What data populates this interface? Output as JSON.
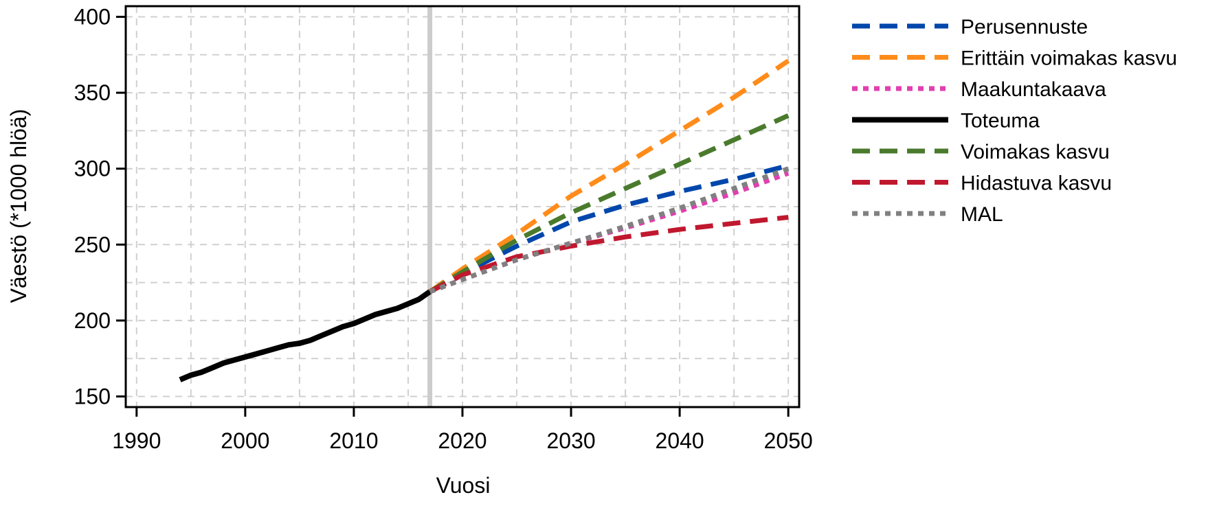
{
  "chart_data": {
    "type": "line",
    "title": "",
    "xlabel": "Vuosi",
    "ylabel": "Väestö (*1000 hlöä)",
    "xlim": [
      1989,
      2051
    ],
    "ylim": [
      143,
      407
    ],
    "x_ticks": [
      1990,
      2000,
      2010,
      2020,
      2030,
      2040,
      2050
    ],
    "y_ticks": [
      150,
      200,
      250,
      300,
      350,
      400
    ],
    "grid": true,
    "grid_style": "dashed",
    "legend_position": "outside-right",
    "reference_line": {
      "x": 2017,
      "color": "#cccccc"
    },
    "series": [
      {
        "name": "Perusennuste",
        "color": "#0047AB",
        "dash": "dashed",
        "x": [
          2017,
          2020,
          2025,
          2030,
          2035,
          2040,
          2045,
          2050
        ],
        "y": [
          219,
          231,
          249,
          265,
          276,
          285,
          293,
          302
        ]
      },
      {
        "name": "Erittäin voimakas kasvu",
        "color": "#FF8C1A",
        "dash": "dashed",
        "x": [
          2017,
          2020,
          2025,
          2030,
          2035,
          2040,
          2045,
          2050
        ],
        "y": [
          219,
          234,
          257,
          282,
          303,
          325,
          347,
          371
        ]
      },
      {
        "name": "Maakuntakaava",
        "color": "#E040B0",
        "dash": "dotted",
        "x": [
          2017,
          2020,
          2025,
          2030,
          2035,
          2040,
          2045,
          2050
        ],
        "y": [
          219,
          227,
          240,
          251,
          261,
          272,
          284,
          297
        ]
      },
      {
        "name": "Toteuma",
        "color": "#000000",
        "dash": "solid",
        "x": [
          1994,
          1995,
          1996,
          1997,
          1998,
          1999,
          2000,
          2001,
          2002,
          2003,
          2004,
          2005,
          2006,
          2007,
          2008,
          2009,
          2010,
          2011,
          2012,
          2013,
          2014,
          2015,
          2016,
          2017
        ],
        "y": [
          161,
          164,
          166,
          169,
          172,
          174,
          176,
          178,
          180,
          182,
          184,
          185,
          187,
          190,
          193,
          196,
          198,
          201,
          204,
          206,
          208,
          211,
          214,
          219
        ]
      },
      {
        "name": "Voimakas kasvu",
        "color": "#4A7A2C",
        "dash": "dashed",
        "x": [
          2017,
          2020,
          2025,
          2030,
          2035,
          2040,
          2045,
          2050
        ],
        "y": [
          219,
          232,
          253,
          271,
          287,
          303,
          319,
          335
        ]
      },
      {
        "name": "Hidastuva kasvu",
        "color": "#C0182E",
        "dash": "dashed",
        "x": [
          2017,
          2020,
          2025,
          2030,
          2035,
          2040,
          2045,
          2050
        ],
        "y": [
          219,
          230,
          242,
          249,
          255,
          260,
          264,
          268
        ]
      },
      {
        "name": "MAL",
        "color": "#808080",
        "dash": "dotted",
        "x": [
          2017,
          2020,
          2025,
          2030,
          2035,
          2040,
          2045,
          2050
        ],
        "y": [
          219,
          227,
          240,
          251,
          262,
          274,
          287,
          300
        ]
      }
    ]
  }
}
